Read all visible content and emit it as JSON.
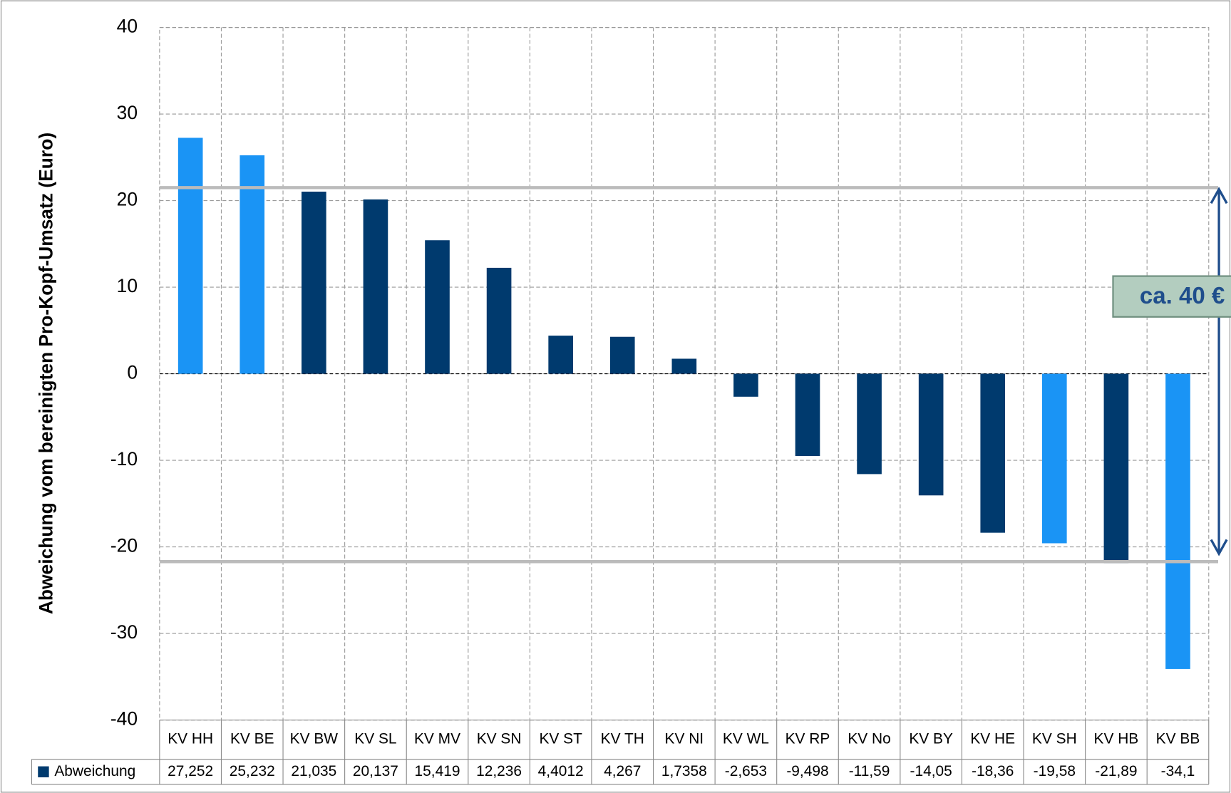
{
  "chart_data": {
    "type": "bar",
    "y_label": "Abweichung vom bereinigten Pro-Kopf-Umsatz  (Euro)",
    "categories": [
      "KV HH",
      "KV BE",
      "KV BW",
      "KV SL",
      "KV MV",
      "KV SN",
      "KV ST",
      "KV TH",
      "KV NI",
      "KV WL",
      "KV RP",
      "KV No",
      "KV BY",
      "KV HE",
      "KV SH",
      "KV HB",
      "KV BB"
    ],
    "series": [
      {
        "name": "Abweichung",
        "color": "#003a6e",
        "colors": [
          "#1a94f5",
          "#1a94f5",
          "#003a6e",
          "#003a6e",
          "#003a6e",
          "#003a6e",
          "#003a6e",
          "#003a6e",
          "#003a6e",
          "#003a6e",
          "#003a6e",
          "#003a6e",
          "#003a6e",
          "#003a6e",
          "#1a94f5",
          "#003a6e",
          "#1a94f5"
        ],
        "values": [
          27.252,
          25.232,
          21.035,
          20.137,
          15.419,
          12.236,
          4.4012,
          4.267,
          1.7358,
          -2.653,
          -9.498,
          -11.59,
          -14.05,
          -18.36,
          -19.58,
          -21.89,
          -34.1
        ],
        "value_labels": [
          "27,252",
          "25,232",
          "21,035",
          "20,137",
          "15,419",
          "12,236",
          "4,4012",
          "4,267",
          "1,7358",
          "-2,653",
          "-9,498",
          "-11,59",
          "-14,05",
          "-18,36",
          "-19,58",
          "-21,89",
          "-34,1"
        ]
      }
    ],
    "ylim": [
      -40,
      40
    ],
    "yticks": [
      -40,
      -30,
      -20,
      -10,
      0,
      10,
      20,
      30,
      40
    ],
    "grid": true,
    "reference_lines": [
      21.5,
      -21.7
    ],
    "annotation": "ca. 40 €"
  }
}
